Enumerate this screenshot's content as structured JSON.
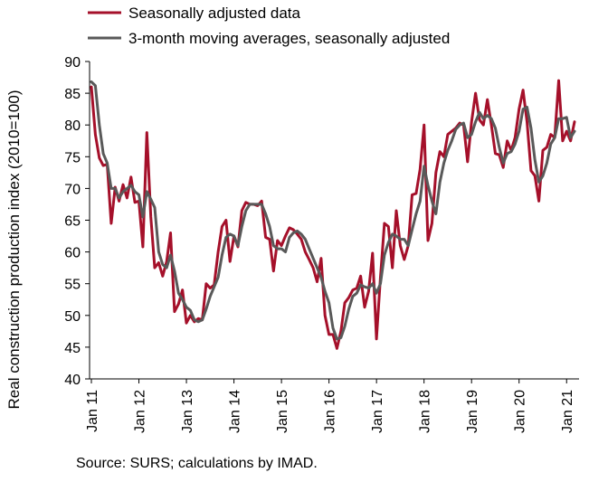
{
  "chart_data": {
    "type": "line",
    "ylabel": "Real construction production index (2010=100)",
    "xlabel": "",
    "ylim": [
      40,
      90
    ],
    "yticks": [
      40,
      45,
      50,
      55,
      60,
      65,
      70,
      75,
      80,
      85,
      90
    ],
    "x_tick_labels": [
      "Jan 11",
      "Jan 12",
      "Jan 13",
      "Jan 14",
      "Jan 15",
      "Jan 16",
      "Jan 17",
      "Jan 18",
      "Jan 19",
      "Jan 20",
      "Jan 21"
    ],
    "x_start": "2011-01",
    "x_end": "2021-03",
    "grid": false,
    "legend_position": "top-left",
    "series": [
      {
        "name": "Seasonally adjusted data",
        "color": "#a5102a",
        "values": [
          86.0,
          78.5,
          74.8,
          73.6,
          73.8,
          64.5,
          70.2,
          68.0,
          70.6,
          68.5,
          71.8,
          67.8,
          68.0,
          60.8,
          78.8,
          65.5,
          57.5,
          58.3,
          56.2,
          58.5,
          63.0,
          50.6,
          51.8,
          54.0,
          48.8,
          50.0,
          49.0,
          49.5,
          49.3,
          55.0,
          54.3,
          54.8,
          60.0,
          64.0,
          65.0,
          58.5,
          62.5,
          60.8,
          66.5,
          67.8,
          67.5,
          67.5,
          67.3,
          68.0,
          62.3,
          62.0,
          57.0,
          61.8,
          61.0,
          62.5,
          63.8,
          63.5,
          62.8,
          62.0,
          60.0,
          58.8,
          57.5,
          55.3,
          59.0,
          50.0,
          47.0,
          47.0,
          44.8,
          47.5,
          52.0,
          52.8,
          54.0,
          54.3,
          56.2,
          51.3,
          53.8,
          59.8,
          46.3,
          56.0,
          64.5,
          64.0,
          57.5,
          66.5,
          61.0,
          58.8,
          61.0,
          69.0,
          69.2,
          73.0,
          80.0,
          61.8,
          64.5,
          72.5,
          75.8,
          75.0,
          78.5,
          79.0,
          79.5,
          80.3,
          80.0,
          74.2,
          80.5,
          85.0,
          80.8,
          80.0,
          84.0,
          80.0,
          75.5,
          75.3,
          73.3,
          77.5,
          76.0,
          78.0,
          82.5,
          85.5,
          80.5,
          72.8,
          72.0,
          68.0,
          76.0,
          76.5,
          78.5,
          78.0,
          87.0,
          77.5,
          79.0,
          77.5,
          80.5
        ]
      },
      {
        "name": "3-month moving averages, seasonally adjusted",
        "color": "#595959",
        "values": [
          86.8,
          86.2,
          80.0,
          75.5,
          74.0,
          70.0,
          70.0,
          68.5,
          69.5,
          70.0,
          70.5,
          69.5,
          69.0,
          65.5,
          69.5,
          68.3,
          67.0,
          60.0,
          58.0,
          57.5,
          59.5,
          57.0,
          53.5,
          52.5,
          51.3,
          50.8,
          49.3,
          49.0,
          49.3,
          51.0,
          53.0,
          54.5,
          56.0,
          59.5,
          62.3,
          62.8,
          62.5,
          61.0,
          64.0,
          66.5,
          67.5,
          67.5,
          67.5,
          67.5,
          66.0,
          64.0,
          61.0,
          60.5,
          60.5,
          60.0,
          62.3,
          63.0,
          63.3,
          62.8,
          62.0,
          60.5,
          59.0,
          57.5,
          56.0,
          53.8,
          52.0,
          48.0,
          46.3,
          46.5,
          48.3,
          51.0,
          53.0,
          53.5,
          54.8,
          54.5,
          54.3,
          55.0,
          53.5,
          55.0,
          59.5,
          61.5,
          62.8,
          62.5,
          62.0,
          62.0,
          61.0,
          63.5,
          66.0,
          68.0,
          73.5,
          70.5,
          68.0,
          66.0,
          71.0,
          74.0,
          76.0,
          77.5,
          79.3,
          80.0,
          80.3,
          78.0,
          78.5,
          80.5,
          82.0,
          81.0,
          81.5,
          81.0,
          79.5,
          76.5,
          74.0,
          75.5,
          75.8,
          77.0,
          79.0,
          82.5,
          82.8,
          79.5,
          74.5,
          71.0,
          72.0,
          74.0,
          77.0,
          78.0,
          81.0,
          81.0,
          81.2,
          78.0,
          79.0
        ]
      }
    ]
  },
  "footer": {
    "source": "Source: SURS; calculations by IMAD."
  }
}
